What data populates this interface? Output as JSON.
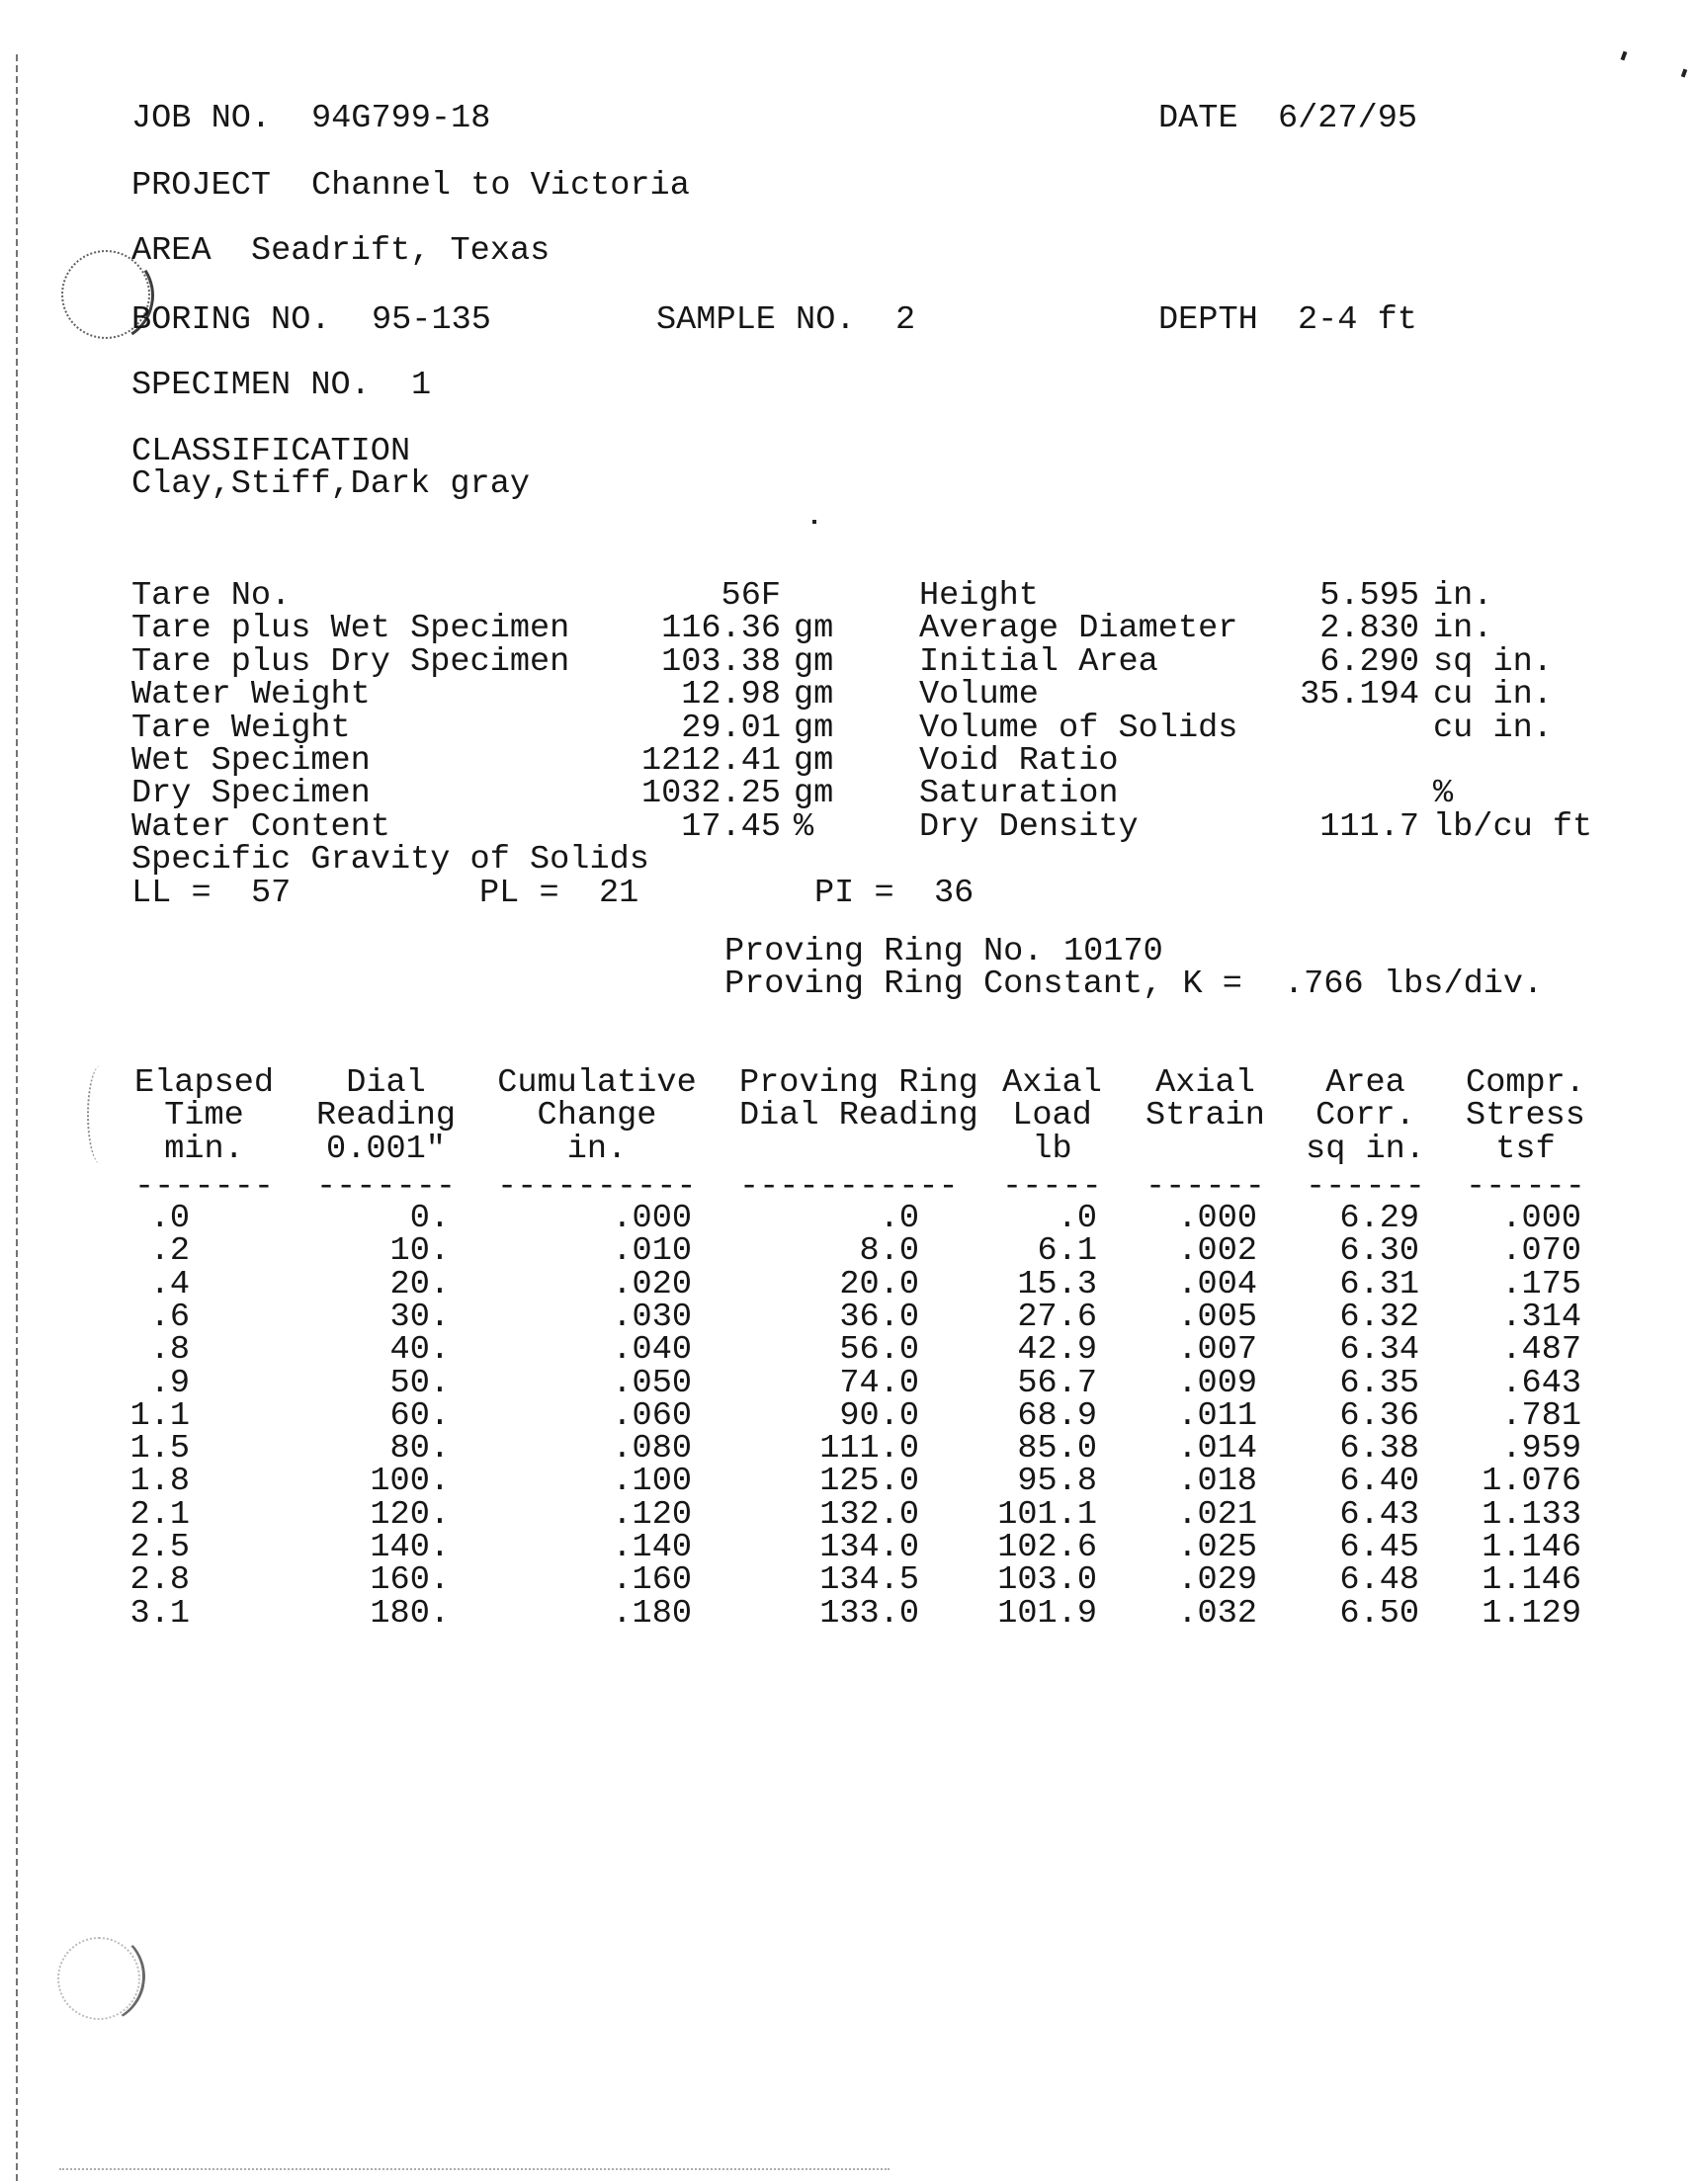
{
  "colors": {
    "ink": "#161616",
    "paper": "#ffffff"
  },
  "header": {
    "job_label": "JOB NO.",
    "job_value": "94G799-18",
    "date_label": "DATE",
    "date_value": "6/27/95",
    "project_label": "PROJECT",
    "project_value": "Channel to Victoria",
    "area_label": "AREA",
    "area_value": "Seadrift, Texas",
    "boring_label": "BORING NO.",
    "boring_value": "95-135",
    "sample_label": "SAMPLE NO.",
    "sample_value": "2",
    "depth_label": "DEPTH",
    "depth_value": "2-4 ft",
    "specimen_label": "SPECIMEN NO.",
    "specimen_value": "1",
    "classification_label": "CLASSIFICATION",
    "classification_value": "Clay,Stiff,Dark gray"
  },
  "specimen_left": [
    {
      "label": "Tare No.",
      "value": "56F",
      "unit": ""
    },
    {
      "label": "Tare plus Wet Specimen",
      "value": "116.36",
      "unit": "gm"
    },
    {
      "label": "Tare plus Dry Specimen",
      "value": "103.38",
      "unit": "gm"
    },
    {
      "label": "Water Weight",
      "value": "12.98",
      "unit": "gm"
    },
    {
      "label": "Tare Weight",
      "value": "29.01",
      "unit": "gm"
    },
    {
      "label": "Wet Specimen",
      "value": "1212.41",
      "unit": "gm"
    },
    {
      "label": "Dry Specimen",
      "value": "1032.25",
      "unit": "gm"
    },
    {
      "label": "Water Content",
      "value": "17.45",
      "unit": "%"
    },
    {
      "label": "Specific Gravity of Solids",
      "value": "",
      "unit": ""
    }
  ],
  "specimen_right": [
    {
      "label": "Height",
      "value": "5.595",
      "unit": "in."
    },
    {
      "label": "Average Diameter",
      "value": "2.830",
      "unit": "in."
    },
    {
      "label": "Initial Area",
      "value": "6.290",
      "unit": "sq in."
    },
    {
      "label": "Volume",
      "value": "35.194",
      "unit": "cu in."
    },
    {
      "label": "Volume of Solids",
      "value": "",
      "unit": "cu in."
    },
    {
      "label": "Void Ratio",
      "value": "",
      "unit": ""
    },
    {
      "label": "Saturation",
      "value": "",
      "unit": "%"
    },
    {
      "label": "Dry Density",
      "value": "111.7",
      "unit": "lb/cu ft"
    }
  ],
  "atterberg": {
    "ll_label": "LL =",
    "ll_value": "57",
    "pl_label": "PL =",
    "pl_value": "21",
    "pi_label": "PI =",
    "pi_value": "36"
  },
  "proving_ring": {
    "no_label": "Proving Ring No.",
    "no_value": "10170",
    "k_label": "Proving Ring Constant, K =",
    "k_value": ".766",
    "k_unit": "lbs/div."
  },
  "table": {
    "columns": [
      {
        "name": "elapsed-time",
        "lines": [
          "Elapsed",
          "Time",
          "min."
        ],
        "dashes": "-------"
      },
      {
        "name": "dial-reading",
        "lines": [
          "Dial",
          "Reading",
          "0.001\""
        ],
        "dashes": "-------"
      },
      {
        "name": "cumulative-change",
        "lines": [
          "Cumulative",
          "Change",
          "in."
        ],
        "dashes": "----------"
      },
      {
        "name": "proving-ring-dial",
        "lines": [
          "Proving Ring",
          "Dial Reading",
          ""
        ],
        "dashes": "-----------"
      },
      {
        "name": "axial-load",
        "lines": [
          "Axial",
          "Load",
          "lb"
        ],
        "dashes": "-----"
      },
      {
        "name": "axial-strain",
        "lines": [
          "Axial",
          "Strain",
          ""
        ],
        "dashes": "------"
      },
      {
        "name": "area-corr",
        "lines": [
          "Area",
          "Corr.",
          "sq in."
        ],
        "dashes": "------"
      },
      {
        "name": "compr-stress",
        "lines": [
          "Compr.",
          "Stress",
          "tsf"
        ],
        "dashes": "------"
      }
    ],
    "rows": [
      [
        ".0",
        "0.",
        ".000",
        ".0",
        ".0",
        ".000",
        "6.29",
        ".000"
      ],
      [
        ".2",
        "10.",
        ".010",
        "8.0",
        "6.1",
        ".002",
        "6.30",
        ".070"
      ],
      [
        ".4",
        "20.",
        ".020",
        "20.0",
        "15.3",
        ".004",
        "6.31",
        ".175"
      ],
      [
        ".6",
        "30.",
        ".030",
        "36.0",
        "27.6",
        ".005",
        "6.32",
        ".314"
      ],
      [
        ".8",
        "40.",
        ".040",
        "56.0",
        "42.9",
        ".007",
        "6.34",
        ".487"
      ],
      [
        ".9",
        "50.",
        ".050",
        "74.0",
        "56.7",
        ".009",
        "6.35",
        ".643"
      ],
      [
        "1.1",
        "60.",
        ".060",
        "90.0",
        "68.9",
        ".011",
        "6.36",
        ".781"
      ],
      [
        "1.5",
        "80.",
        ".080",
        "111.0",
        "85.0",
        ".014",
        "6.38",
        ".959"
      ],
      [
        "1.8",
        "100.",
        ".100",
        "125.0",
        "95.8",
        ".018",
        "6.40",
        "1.076"
      ],
      [
        "2.1",
        "120.",
        ".120",
        "132.0",
        "101.1",
        ".021",
        "6.43",
        "1.133"
      ],
      [
        "2.5",
        "140.",
        ".140",
        "134.0",
        "102.6",
        ".025",
        "6.45",
        "1.146"
      ],
      [
        "2.8",
        "160.",
        ".160",
        "134.5",
        "103.0",
        ".029",
        "6.48",
        "1.146"
      ],
      [
        "3.1",
        "180.",
        ".180",
        "133.0",
        "101.9",
        ".032",
        "6.50",
        "1.129"
      ]
    ]
  }
}
